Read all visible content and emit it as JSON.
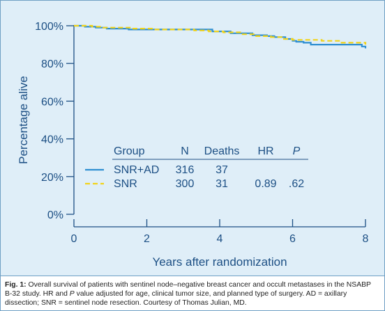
{
  "chart_data": {
    "type": "line",
    "title": "",
    "xlabel": "Years after randomization",
    "ylabel": "Percentage alive",
    "xlim": [
      0,
      8
    ],
    "ylim": [
      0,
      100
    ],
    "x_ticks": [
      "0",
      "2",
      "4",
      "6",
      "8"
    ],
    "y_ticks": [
      "0%",
      "20%",
      "40%",
      "60%",
      "80%",
      "100%"
    ],
    "x_tick_values": [
      0,
      2,
      4,
      6,
      8
    ],
    "y_tick_values": [
      0,
      20,
      40,
      60,
      80,
      100
    ],
    "grid": false,
    "series": [
      {
        "name": "SNR+AD",
        "color": "#2f8fd1",
        "style": "solid",
        "x": [
          0,
          0.3,
          0.6,
          0.9,
          1.5,
          3.6,
          3.8,
          4.3,
          4.9,
          5.3,
          5.5,
          5.8,
          6.0,
          6.1,
          6.3,
          6.5,
          7.6,
          7.9,
          8.0
        ],
        "y": [
          100,
          99.5,
          99,
          98.5,
          98,
          98,
          97,
          96,
          95,
          94.5,
          94,
          93,
          92,
          91.5,
          91,
          90,
          90,
          89,
          88
        ]
      },
      {
        "name": "SNR",
        "color": "#f1d318",
        "style": "dashed",
        "x": [
          0,
          0.5,
          0.8,
          1.6,
          2.2,
          2.9,
          3.3,
          3.7,
          4.1,
          4.6,
          5.0,
          5.4,
          5.7,
          6.0,
          6.8,
          7.3,
          8.0
        ],
        "y": [
          100,
          99.5,
          99,
          98.5,
          98,
          98,
          97.5,
          97,
          96.5,
          95.5,
          94.5,
          94,
          93,
          92.5,
          92,
          91,
          90
        ]
      }
    ],
    "legend": {
      "placement": "center",
      "headers": {
        "group": "Group",
        "n": "N",
        "deaths": "Deaths",
        "hr": "HR",
        "p": "P"
      },
      "rows": [
        {
          "group": "SNR+AD",
          "n": "316",
          "deaths": "37",
          "hr": "",
          "p": ""
        },
        {
          "group": "SNR",
          "n": "300",
          "deaths": "31",
          "hr": "0.89",
          "p": ".62"
        }
      ]
    }
  },
  "caption": {
    "label": "Fig. 1:",
    "part1": " Overall survival of patients with sentinel node–negative breast cancer and occult metastases in the NSABP B-32 study. HR and ",
    "p_italic": "P",
    "part2": " value adjusted for age, clinical tumor size, and planned type of surgery. AD = axillary dissection; SNR = sentinel node resection. Courtesy of Thomas Julian, MD."
  },
  "colors": {
    "background": "#dfeef8",
    "axis": "#1c4f84",
    "border": "#6f9fc4"
  }
}
